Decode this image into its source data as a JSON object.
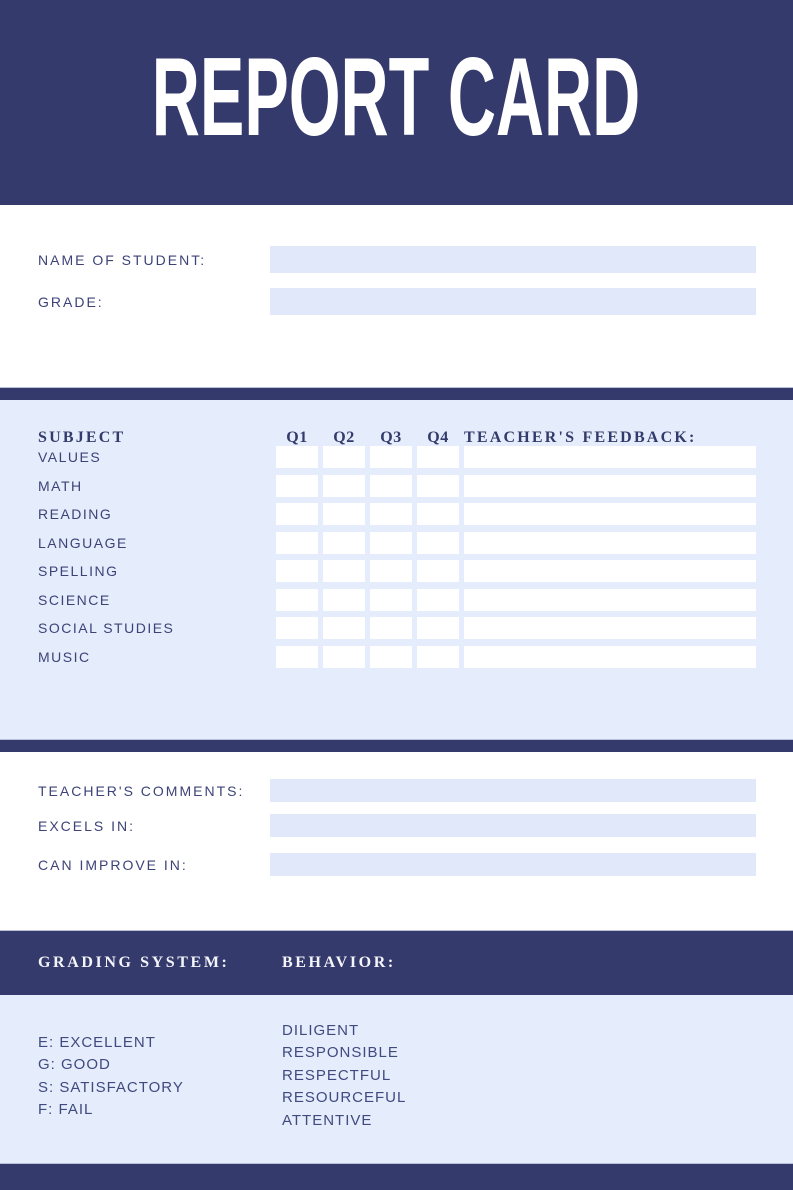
{
  "title": "REPORT CARD",
  "colors": {
    "navy": "#353a6d",
    "section_background": "#e5ecfc",
    "field_background": "#e0e8fa",
    "label_text": "#3d4377",
    "header_text": "#ffffff"
  },
  "student_info": {
    "fields": [
      {
        "label": "NAME OF STUDENT:",
        "value": ""
      },
      {
        "label": "GRADE:",
        "value": ""
      }
    ]
  },
  "grades_table": {
    "subject_header": "SUBJECT",
    "quarter_headers": [
      "Q1",
      "Q2",
      "Q3",
      "Q4"
    ],
    "feedback_header": "TEACHER'S FEEDBACK:",
    "rows": [
      {
        "subject": "VALUES",
        "q1": "",
        "q2": "",
        "q3": "",
        "q4": "",
        "feedback": ""
      },
      {
        "subject": "MATH",
        "q1": "",
        "q2": "",
        "q3": "",
        "q4": "",
        "feedback": ""
      },
      {
        "subject": "READING",
        "q1": "",
        "q2": "",
        "q3": "",
        "q4": "",
        "feedback": ""
      },
      {
        "subject": "LANGUAGE",
        "q1": "",
        "q2": "",
        "q3": "",
        "q4": "",
        "feedback": ""
      },
      {
        "subject": "SPELLING",
        "q1": "",
        "q2": "",
        "q3": "",
        "q4": "",
        "feedback": ""
      },
      {
        "subject": "SCIENCE",
        "q1": "",
        "q2": "",
        "q3": "",
        "q4": "",
        "feedback": ""
      },
      {
        "subject": "SOCIAL STUDIES",
        "q1": "",
        "q2": "",
        "q3": "",
        "q4": "",
        "feedback": ""
      },
      {
        "subject": "MUSIC",
        "q1": "",
        "q2": "",
        "q3": "",
        "q4": "",
        "feedback": ""
      }
    ]
  },
  "comments": {
    "fields": [
      {
        "label": "TEACHER'S COMMENTS:",
        "value": ""
      },
      {
        "label": "EXCELS IN:",
        "value": ""
      },
      {
        "label": "CAN IMPROVE IN:",
        "value": ""
      }
    ]
  },
  "legend": {
    "grading_header": "GRADING SYSTEM:",
    "behavior_header": "BEHAVIOR:",
    "grading_items": [
      "E: EXCELLENT",
      "G: GOOD",
      "S: SATISFACTORY",
      "F: FAIL"
    ],
    "behavior_items": [
      "DILIGENT",
      "RESPONSIBLE",
      "RESPECTFUL",
      "RESOURCEFUL",
      "ATTENTIVE"
    ]
  }
}
